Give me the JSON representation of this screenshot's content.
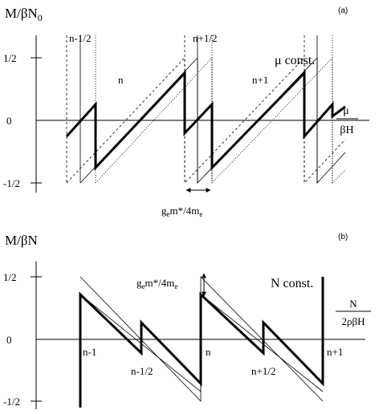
{
  "panel_a": {
    "tag": "(a)",
    "y_label": {
      "main": "M/βN",
      "sub": "0"
    },
    "y_ticks": {
      "top": "1/2",
      "zero": "0",
      "bottom": "-1/2"
    },
    "x_label": {
      "numerator": "μ",
      "denominator": "βH"
    },
    "condition": "μ const.",
    "levels": [
      "n-1/2",
      "n+1/2"
    ],
    "regions": [
      "n",
      "n+1"
    ],
    "spacing_label": {
      "pre": "g",
      "sub1": "e",
      "mid": "m*/4m",
      "sub2": "e"
    }
  },
  "panel_b": {
    "tag": "(b)",
    "y_label": "M/βN",
    "y_ticks": {
      "top": "1/2",
      "zero": "0",
      "bottom": "-1/2"
    },
    "x_label": {
      "numerator": "N",
      "denominator": "2ρβH"
    },
    "condition": "N const.",
    "levels": [
      "n-1",
      "n-1/2",
      "n",
      "n+1/2",
      "n+1"
    ],
    "spacing_label": {
      "pre": "g",
      "sub1": "e",
      "mid": "m*/4m",
      "sub2": "e"
    }
  },
  "colors": {
    "ink": "#000000",
    "background": "#ffffff"
  }
}
